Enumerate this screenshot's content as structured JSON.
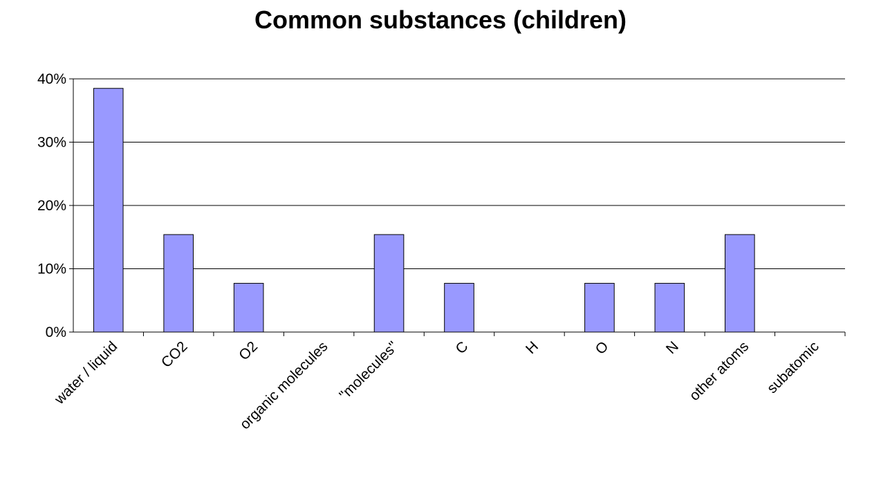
{
  "chart_data": {
    "type": "bar",
    "title": "Common substances (children)",
    "xlabel": "",
    "ylabel": "",
    "categories": [
      "water / liquid",
      "CO2",
      "O2",
      "organic molecules",
      "\"molecules\"",
      "C",
      "H",
      "O",
      "N",
      "other atoms",
      "subatomic"
    ],
    "series": [
      {
        "values": [
          38.5,
          15.4,
          7.7,
          0,
          15.4,
          7.7,
          0,
          7.7,
          7.7,
          15.4,
          0
        ]
      }
    ],
    "ylim": [
      0,
      40
    ],
    "yticks": [
      "0%",
      "10%",
      "20%",
      "30%",
      "40%"
    ],
    "grid": true,
    "legend": "none",
    "colors": {
      "bar_fill": "#9999ff",
      "bar_stroke": "#000000",
      "grid": "#000000"
    }
  }
}
